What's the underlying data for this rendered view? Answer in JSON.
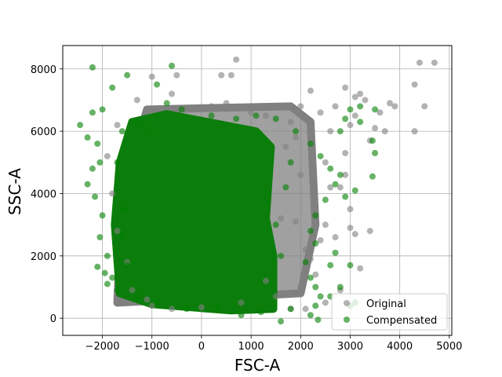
{
  "chart_data": {
    "type": "scatter",
    "xlabel": "FSC-A",
    "ylabel": "SSC-A",
    "xlim": [
      -2800,
      5050
    ],
    "ylim": [
      -550,
      8750
    ],
    "xticks": [
      -2000,
      -1000,
      0,
      1000,
      2000,
      3000,
      4000,
      5000
    ],
    "xtick_labels": [
      "−2000",
      "−1000",
      "0",
      "1000",
      "2000",
      "3000",
      "4000",
      "5000"
    ],
    "yticks": [
      0,
      2000,
      4000,
      6000,
      8000
    ],
    "ytick_labels": [
      "0",
      "2000",
      "4000",
      "6000",
      "8000"
    ],
    "grid": true,
    "legend_position": "bottom-right",
    "series": [
      {
        "name": "Original",
        "color": "#808080",
        "alpha": 0.6,
        "points": [
          [
            -1000,
            400
          ],
          [
            -600,
            300
          ],
          [
            0,
            350
          ],
          [
            800,
            500
          ],
          [
            1500,
            700
          ],
          [
            2000,
            1000
          ],
          [
            2300,
            1400
          ],
          [
            2200,
            1900
          ],
          [
            2400,
            2500
          ],
          [
            2500,
            3000
          ],
          [
            2300,
            3600
          ],
          [
            2600,
            4200
          ],
          [
            2900,
            4600
          ],
          [
            2500,
            5000
          ],
          [
            2200,
            5600
          ],
          [
            2600,
            6000
          ],
          [
            3000,
            6200
          ],
          [
            1800,
            6300
          ],
          [
            2000,
            6800
          ],
          [
            2200,
            7300
          ],
          [
            700,
            8300
          ],
          [
            600,
            7800
          ],
          [
            400,
            7800
          ],
          [
            -500,
            7800
          ],
          [
            -1000,
            7750
          ],
          [
            -1300,
            7000
          ],
          [
            -1700,
            6200
          ],
          [
            -1900,
            5200
          ],
          [
            -1800,
            4000
          ],
          [
            -1700,
            2800
          ],
          [
            -1500,
            1800
          ],
          [
            -1400,
            900
          ],
          [
            -1100,
            600
          ],
          [
            3000,
            2900
          ],
          [
            3100,
            2700
          ],
          [
            3400,
            2800
          ],
          [
            3200,
            1600
          ],
          [
            2800,
            900
          ],
          [
            3100,
            6500
          ],
          [
            3300,
            7000
          ],
          [
            3200,
            7200
          ],
          [
            3900,
            6800
          ],
          [
            3800,
            6900
          ],
          [
            4300,
            7500
          ],
          [
            4400,
            8200
          ],
          [
            4700,
            8200
          ],
          [
            4500,
            6800
          ],
          [
            4300,
            6000
          ],
          [
            3500,
            6100
          ],
          [
            3700,
            6000
          ],
          [
            3400,
            5700
          ],
          [
            2900,
            5300
          ],
          [
            2800,
            4200
          ],
          [
            3000,
            3500
          ],
          [
            2700,
            2600
          ],
          [
            2100,
            2200
          ],
          [
            1900,
            3100
          ],
          [
            2000,
            4600
          ],
          [
            1700,
            5500
          ],
          [
            1300,
            6500
          ],
          [
            1000,
            6600
          ],
          [
            500,
            6900
          ],
          [
            200,
            6800
          ],
          [
            -300,
            6700
          ],
          [
            -600,
            7200
          ],
          [
            2500,
            500
          ],
          [
            2100,
            300
          ],
          [
            1800,
            300
          ],
          [
            1300,
            1200
          ],
          [
            1600,
            3200
          ],
          [
            1900,
            5800
          ],
          [
            2400,
            6600
          ],
          [
            2700,
            6800
          ],
          [
            2900,
            7400
          ],
          [
            3100,
            7100
          ],
          [
            3600,
            6600
          ]
        ]
      },
      {
        "name": "Compensated",
        "color": "#008000",
        "alpha": 0.6,
        "points": [
          [
            -2200,
            8050
          ],
          [
            -1800,
            7400
          ],
          [
            -1500,
            7800
          ],
          [
            -900,
            7500
          ],
          [
            -600,
            8100
          ],
          [
            -2000,
            6700
          ],
          [
            -2200,
            6600
          ],
          [
            -2450,
            6200
          ],
          [
            -2300,
            5800
          ],
          [
            -2100,
            5600
          ],
          [
            -2050,
            5000
          ],
          [
            -2200,
            4800
          ],
          [
            -2300,
            4300
          ],
          [
            -2150,
            3900
          ],
          [
            -2000,
            3300
          ],
          [
            -2050,
            2600
          ],
          [
            -1900,
            2000
          ],
          [
            -2100,
            1650
          ],
          [
            -1950,
            1450
          ],
          [
            -1800,
            1300
          ],
          [
            -1900,
            1100
          ],
          [
            -1700,
            900
          ],
          [
            -1500,
            1700
          ],
          [
            -1600,
            2600
          ],
          [
            -1550,
            3500
          ],
          [
            -1700,
            5000
          ],
          [
            -1600,
            6000
          ],
          [
            -1300,
            6300
          ],
          [
            -1000,
            6100
          ],
          [
            -700,
            6900
          ],
          [
            -400,
            6700
          ],
          [
            200,
            6500
          ],
          [
            700,
            6400
          ],
          [
            1100,
            6500
          ],
          [
            1500,
            6400
          ],
          [
            1900,
            6000
          ],
          [
            2200,
            5600
          ],
          [
            2400,
            5200
          ],
          [
            2600,
            4800
          ],
          [
            2800,
            4600
          ],
          [
            2700,
            4300
          ],
          [
            2500,
            3800
          ],
          [
            2300,
            3300
          ],
          [
            2200,
            2800
          ],
          [
            2300,
            2400
          ],
          [
            2100,
            1800
          ],
          [
            2200,
            1300
          ],
          [
            2300,
            1000
          ],
          [
            2400,
            700
          ],
          [
            2300,
            400
          ],
          [
            2350,
            -50
          ],
          [
            1800,
            300
          ],
          [
            1600,
            -100
          ],
          [
            1200,
            200
          ],
          [
            800,
            100
          ],
          [
            300,
            300
          ],
          [
            -300,
            300
          ],
          [
            -900,
            500
          ],
          [
            -1300,
            700
          ],
          [
            3000,
            6700
          ],
          [
            3200,
            6300
          ],
          [
            3500,
            6700
          ],
          [
            3450,
            5700
          ],
          [
            3500,
            5300
          ],
          [
            3450,
            4550
          ],
          [
            3100,
            4100
          ],
          [
            2900,
            3900
          ],
          [
            2700,
            2100
          ],
          [
            2600,
            1700
          ],
          [
            2800,
            1000
          ],
          [
            2600,
            700
          ],
          [
            2200,
            100
          ],
          [
            3000,
            1700
          ],
          [
            3000,
            400
          ],
          [
            3100,
            500
          ],
          [
            1500,
            3000
          ],
          [
            1700,
            4200
          ],
          [
            1800,
            5000
          ],
          [
            1600,
            2000
          ],
          [
            2800,
            6000
          ],
          [
            2900,
            6400
          ],
          [
            3200,
            6800
          ]
        ]
      }
    ]
  }
}
